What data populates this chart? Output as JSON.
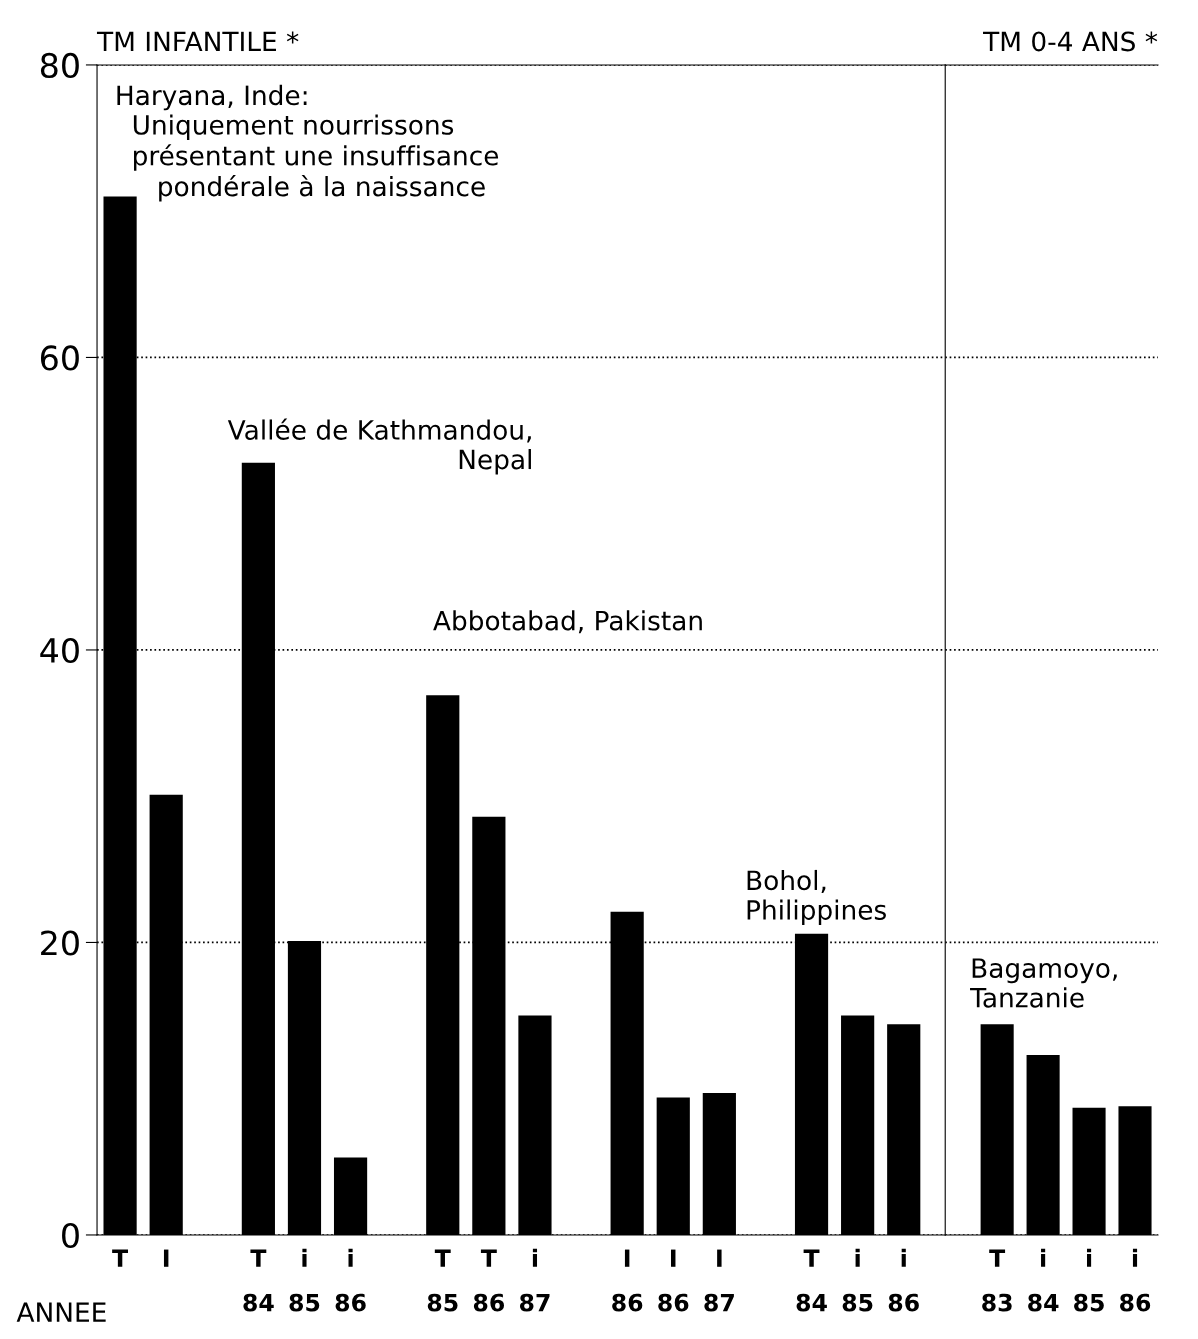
{
  "chart_data": [
    {
      "type": "bar",
      "title": "TM INFANTILE *",
      "xlabel": "ANNEE",
      "color": "#000000",
      "ylim": [
        0,
        80
      ],
      "yticks": [
        0,
        20,
        40,
        60,
        80
      ],
      "grid": "y",
      "categories": [
        "T",
        "I",
        null,
        "T\n84",
        "i\n85",
        "i\n86",
        null,
        "T\n85",
        "T\n86",
        "i\n87",
        null,
        "I\n86",
        "I\n86",
        "I\n87",
        null,
        "T\n84",
        "i\n85",
        "i\n86"
      ],
      "values": [
        71.0,
        30.1,
        null,
        52.8,
        20.1,
        5.3,
        null,
        36.9,
        28.6,
        15.0,
        null,
        22.1,
        9.4,
        9.7,
        null,
        20.6,
        15.0,
        14.4
      ],
      "annotations": [
        "Haryana, Inde:\n  Uniquement nourrissons\n  présentant une insuffisance\n     pondérale à la naissance",
        "Vallée de Kathmandou,\nNepal",
        "Abbotabad, Pakistan",
        "Bohol,\nPhilippines"
      ]
    },
    {
      "type": "bar",
      "title": "TM 0-4 ANS *",
      "color": "#000000",
      "ylim": [
        0,
        80
      ],
      "yticks": [
        0,
        20,
        40,
        60,
        80
      ],
      "grid": "y",
      "tick_labels": "x",
      "categories": [
        "T\n83",
        "i\n84",
        "i\n85",
        "i\n86"
      ],
      "values": [
        14.4,
        12.3,
        8.7,
        8.8
      ],
      "annotations": [
        "Bagamoyo,\nTanzanie"
      ]
    }
  ]
}
